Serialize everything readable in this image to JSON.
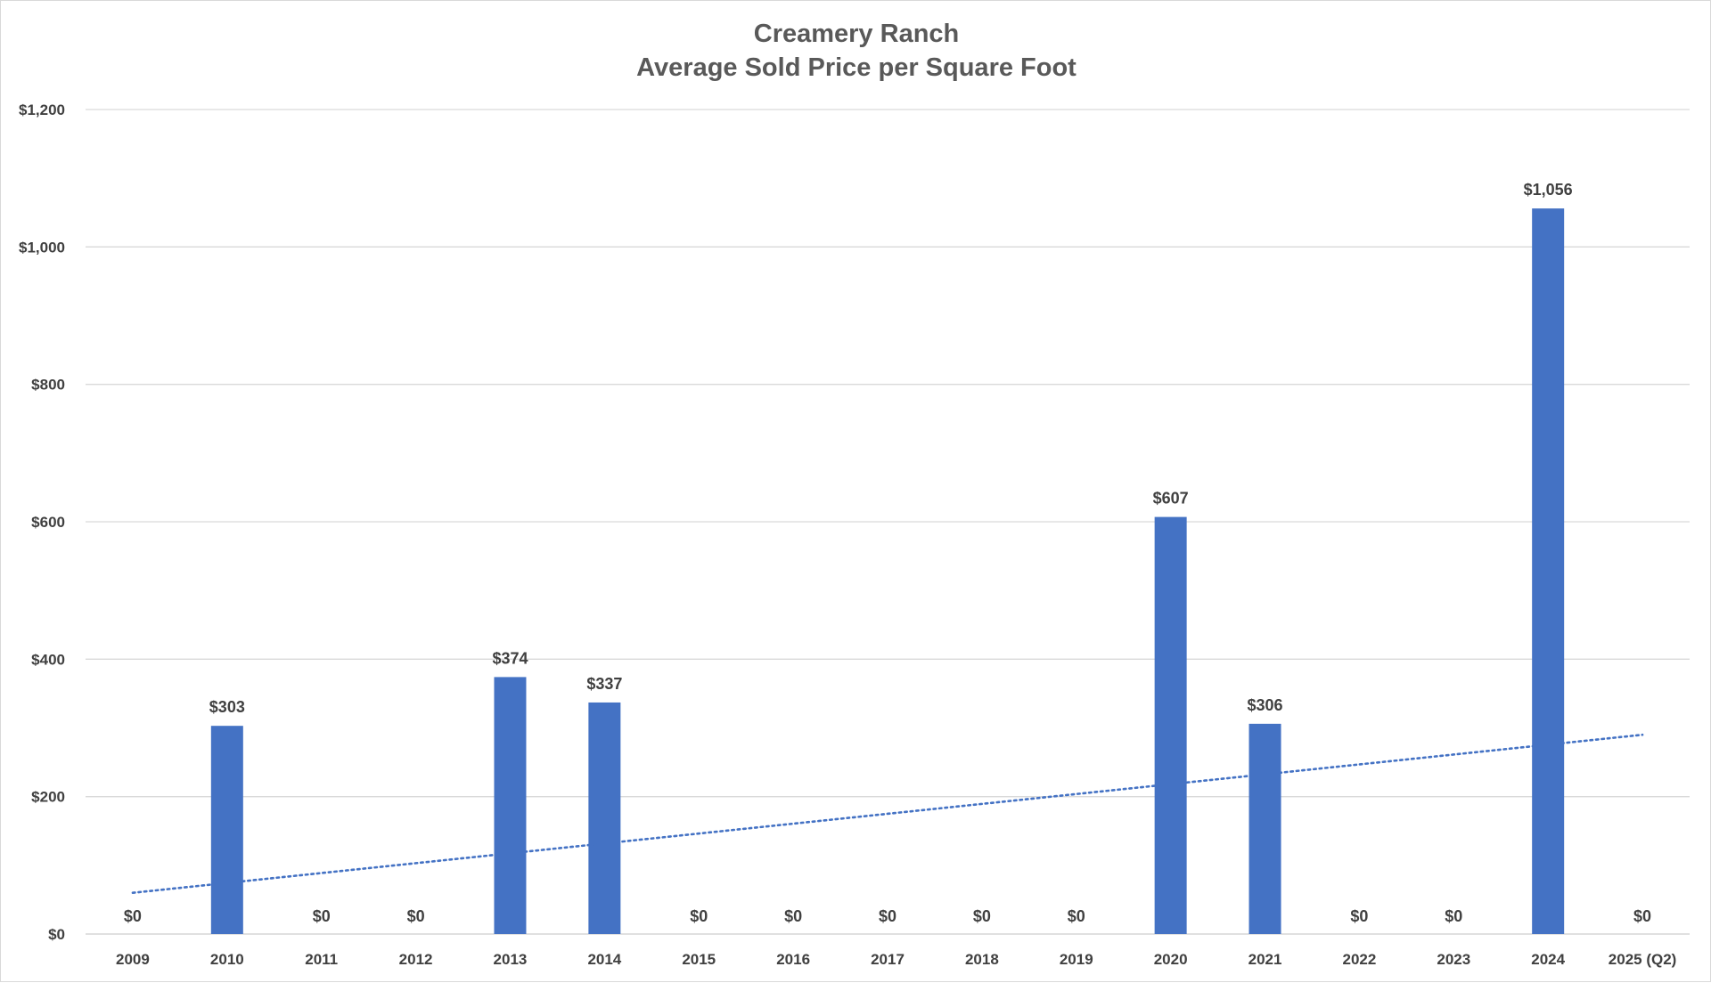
{
  "chart_data": {
    "type": "bar",
    "title": "Creamery Ranch",
    "subtitle": "Average Sold Price per Square Foot",
    "categories": [
      "2009",
      "2010",
      "2011",
      "2012",
      "2013",
      "2014",
      "2015",
      "2016",
      "2017",
      "2018",
      "2019",
      "2020",
      "2021",
      "2022",
      "2023",
      "2024",
      "2025 (Q2)"
    ],
    "values": [
      0,
      303,
      0,
      0,
      374,
      337,
      0,
      0,
      0,
      0,
      0,
      607,
      306,
      0,
      0,
      1056,
      0
    ],
    "data_labels": [
      "$0",
      "$303",
      "$0",
      "$0",
      "$374",
      "$337",
      "$0",
      "$0",
      "$0",
      "$0",
      "$0",
      "$607",
      "$306",
      "$0",
      "$0",
      "$1,056",
      "$0"
    ],
    "y_ticks": [
      0,
      200,
      400,
      600,
      800,
      1000,
      1200
    ],
    "y_tick_labels": [
      "$0",
      "$200",
      "$400",
      "$600",
      "$800",
      "$1,000",
      "$1,200"
    ],
    "ylim": [
      0,
      1200
    ],
    "grid": "horizontal",
    "legend": "none",
    "trendline": {
      "type": "linear",
      "style": "dotted",
      "start_value": 60,
      "end_value": 290
    },
    "colors": {
      "bar": "#4472C4",
      "trendline": "#4472C4",
      "grid": "#d9d9d9",
      "text": "#404040",
      "title": "#595959"
    }
  }
}
